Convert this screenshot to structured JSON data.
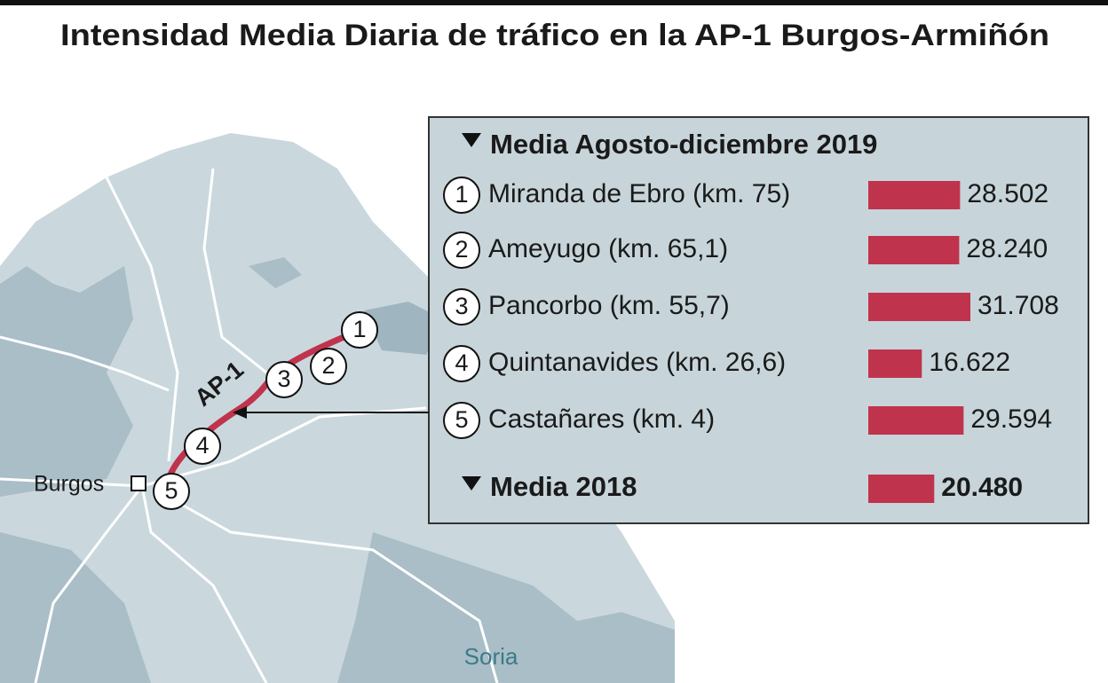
{
  "chart_data": {
    "type": "bar",
    "title": "Intensidad Media Diaria de tráfico en la AP-1 Burgos-Armiñón",
    "subtitle": "Media Agosto-diciembre 2019",
    "markers": [
      "1",
      "2",
      "3",
      "4",
      "5"
    ],
    "categories": [
      "Miranda de Ebro (km. 75)",
      "Ameyugo (km. 65,1)",
      "Pancorbo (km. 55,7)",
      "Quintanavides (km. 26,6)",
      "Castañares (km. 4)"
    ],
    "values": [
      28502,
      28240,
      31708,
      16622,
      29594
    ],
    "value_labels": [
      "28.502",
      "28.240",
      "31.708",
      "16.622",
      "29.594"
    ],
    "color": "#c0334d",
    "reference": {
      "label": "Media 2018",
      "value": 20480,
      "value_label": "20.480"
    },
    "map_labels": {
      "road": "AP-1",
      "city": "Burgos",
      "region": "Soria"
    }
  }
}
